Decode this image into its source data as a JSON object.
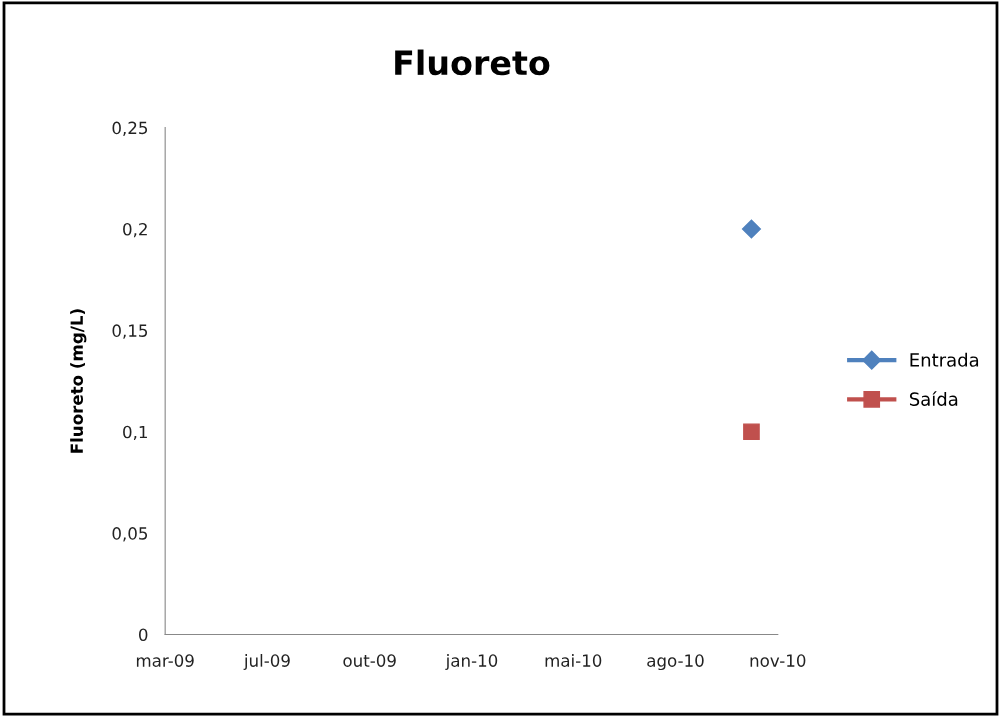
{
  "chart_data": {
    "type": "line",
    "title": "Fluoreto",
    "ylabel": "Fluoreto (mg/L)",
    "x": [
      "2010-10-31"
    ],
    "series": [
      {
        "name": "Entrada",
        "color": "#4f81bd",
        "values": [
          0.2
        ],
        "marker": "diamond"
      },
      {
        "name": "Saída",
        "color": "#c0504d",
        "values": [
          0.1
        ],
        "marker": "square"
      }
    ],
    "xlim": [
      "2009-03-31",
      "2010-11-26"
    ],
    "xticks": [
      {
        "value": "2009-03-31",
        "label": "mar-09"
      },
      {
        "value": "2009-07-10",
        "label": "jul-09"
      },
      {
        "value": "2009-10-19",
        "label": "out-09"
      },
      {
        "value": "2010-01-28",
        "label": "jan-10"
      },
      {
        "value": "2010-05-08",
        "label": "mai-10"
      },
      {
        "value": "2010-08-17",
        "label": "ago-10"
      },
      {
        "value": "2010-11-26",
        "label": "nov-10"
      }
    ],
    "ylim": [
      0,
      0.25
    ],
    "yticks": [
      {
        "value": 0,
        "label": "0"
      },
      {
        "value": 0.05,
        "label": "0,05"
      },
      {
        "value": 0.1,
        "label": "0,1"
      },
      {
        "value": 0.15,
        "label": "0,15"
      },
      {
        "value": 0.2,
        "label": "0,2"
      },
      {
        "value": 0.25,
        "label": "0,25"
      }
    ],
    "grid": false,
    "legend": "right",
    "line_style": "solid"
  }
}
